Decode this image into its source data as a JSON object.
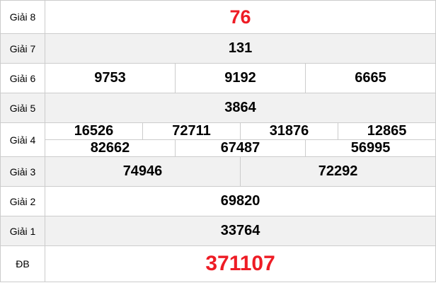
{
  "colors": {
    "accent_red": "#ee1c25",
    "stripe_bg": "#f1f1f1",
    "border": "#cccccc",
    "text": "#000000"
  },
  "prize_table": {
    "grid_columns": 12,
    "rows": [
      {
        "label": "Giải 8",
        "highlight": "top",
        "lines": [
          [
            "76"
          ]
        ]
      },
      {
        "label": "Giải 7",
        "highlight": "",
        "lines": [
          [
            "131"
          ]
        ]
      },
      {
        "label": "Giải 6",
        "highlight": "",
        "lines": [
          [
            "9753",
            "9192",
            "6665"
          ]
        ]
      },
      {
        "label": "Giải 5",
        "highlight": "",
        "lines": [
          [
            "3864"
          ]
        ]
      },
      {
        "label": "Giải 4",
        "highlight": "",
        "lines": [
          [
            "16526",
            "72711",
            "31876",
            "12865"
          ],
          [
            "82662",
            "67487",
            "56995"
          ]
        ]
      },
      {
        "label": "Giải 3",
        "highlight": "",
        "lines": [
          [
            "74946",
            "72292"
          ]
        ]
      },
      {
        "label": "Giải 2",
        "highlight": "",
        "lines": [
          [
            "69820"
          ]
        ]
      },
      {
        "label": "Giải 1",
        "highlight": "",
        "lines": [
          [
            "33764"
          ]
        ]
      },
      {
        "label": "ĐB",
        "highlight": "db",
        "lines": [
          [
            "371107"
          ]
        ]
      }
    ]
  }
}
